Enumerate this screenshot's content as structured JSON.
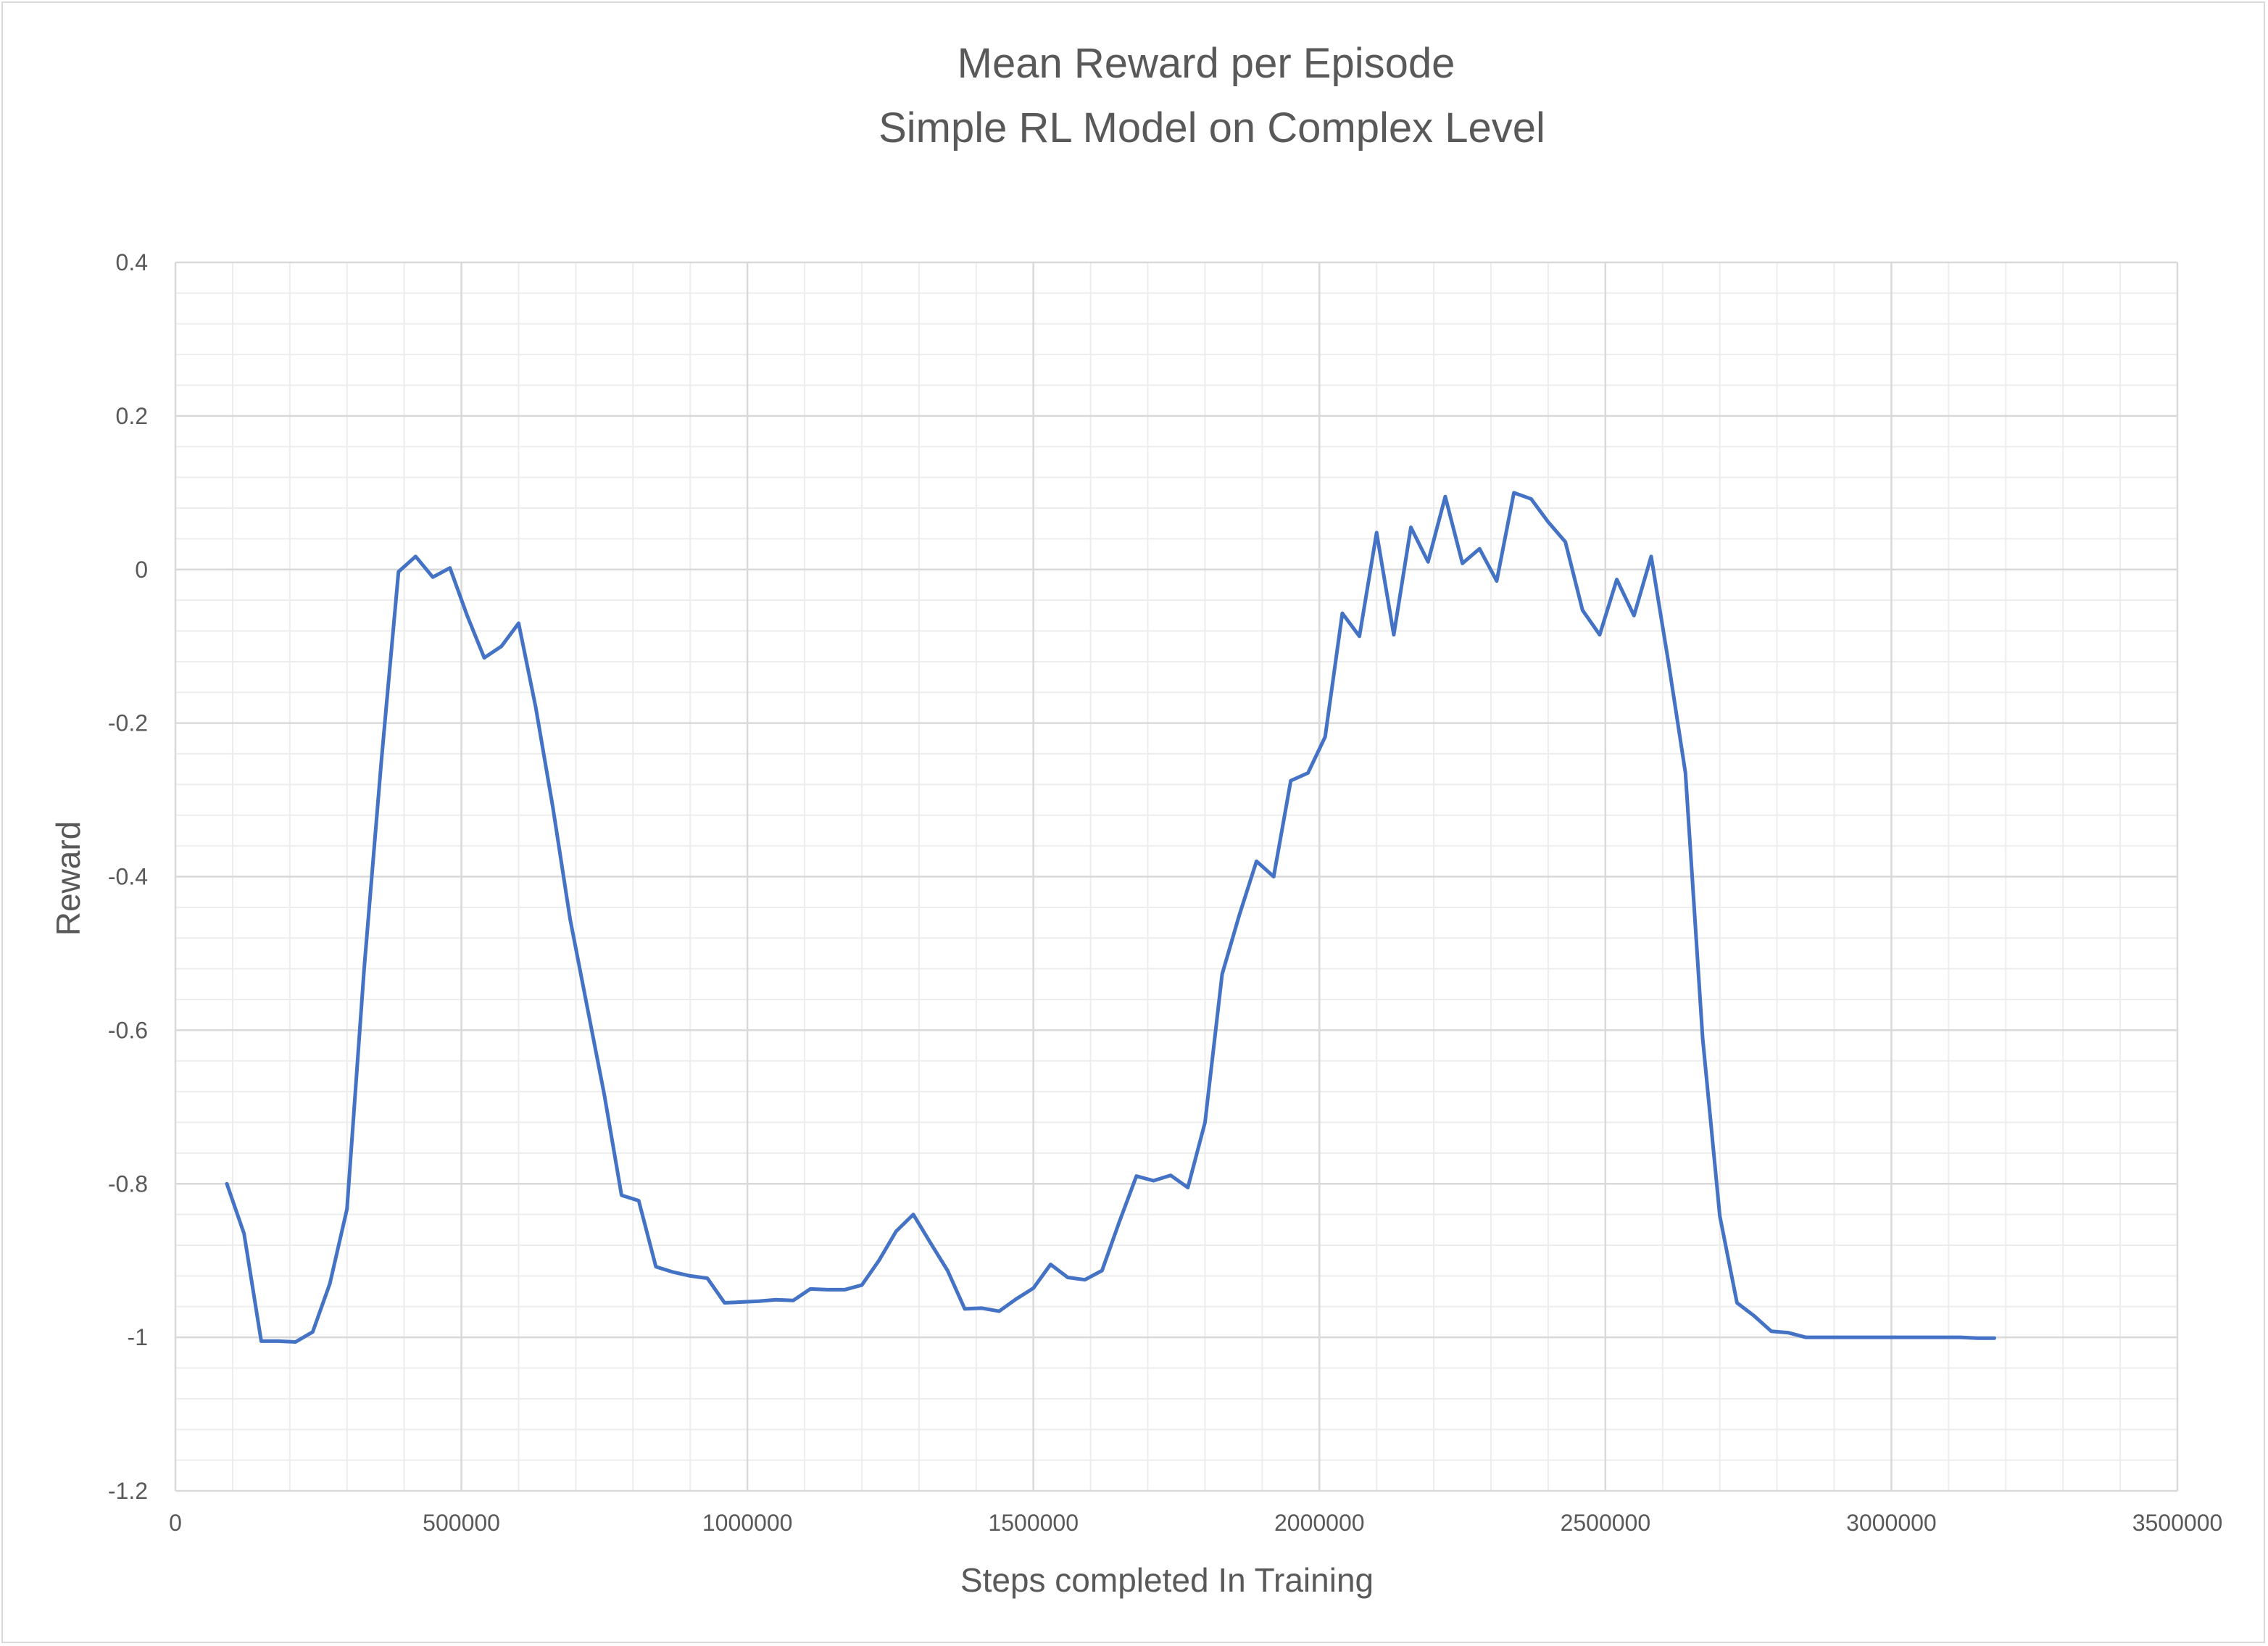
{
  "chart_data": {
    "type": "line",
    "title": "Mean Reward per Episode",
    "subtitle": "Simple RL Model on Complex Level",
    "xlabel": "Steps completed In Training",
    "ylabel": "Reward",
    "xlim": [
      0,
      3500000
    ],
    "ylim": [
      -1.2,
      0.4
    ],
    "x_ticks": [
      0,
      500000,
      1000000,
      1500000,
      2000000,
      2500000,
      3000000,
      3500000
    ],
    "x_tick_labels": [
      "0",
      "500000",
      "1000000",
      "1500000",
      "2000000",
      "2500000",
      "3000000",
      "3500000"
    ],
    "y_ticks": [
      -1.2,
      -1,
      -0.8,
      -0.6,
      -0.4,
      -0.2,
      0,
      0.2,
      0.4
    ],
    "y_tick_labels": [
      "-1.2",
      "-1",
      "-0.8",
      "-0.6",
      "-0.4",
      "-0.2",
      "0",
      "0.2",
      "0.4"
    ],
    "grid": true,
    "legend": "none",
    "line_color": "#4472c4",
    "series": [
      {
        "x": [
          90000,
          120000,
          150000,
          180000,
          210000,
          240000,
          270000,
          300000,
          330000,
          360000,
          390000,
          420000,
          450000,
          480000,
          510000,
          540000,
          570000,
          600000,
          630000,
          660000,
          690000,
          720000,
          750000,
          780000,
          810000,
          840000,
          870000,
          900000,
          930000,
          960000,
          990000,
          1020000,
          1050000,
          1080000,
          1110000,
          1140000,
          1170000,
          1200000,
          1230000,
          1260000,
          1290000,
          1320000,
          1350000,
          1380000,
          1410000,
          1440000,
          1470000,
          1500000,
          1530000,
          1560000,
          1590000,
          1620000,
          1650000,
          1680000,
          1710000,
          1740000,
          1770000,
          1800000,
          1830000,
          1860000,
          1890000,
          1920000,
          1950000,
          1980000,
          2010000,
          2040000,
          2070000,
          2100000,
          2130000,
          2160000,
          2190000,
          2220000,
          2250000,
          2280000,
          2310000,
          2340000,
          2370000,
          2400000,
          2430000,
          2460000,
          2490000,
          2520000,
          2550000,
          2580000,
          2610000,
          2640000,
          2670000,
          2700000,
          2730000,
          2760000,
          2790000,
          2820000,
          2850000,
          2880000,
          2910000,
          2940000,
          2970000,
          3000000,
          3030000,
          3060000,
          3090000,
          3120000,
          3150000,
          3180000
        ],
        "values": [
          -0.8,
          -0.865,
          -1.005,
          -1.005,
          -1.006,
          -0.993,
          -0.93,
          -0.833,
          -0.52,
          -0.25,
          -0.003,
          0.017,
          -0.01,
          0.002,
          -0.06,
          -0.115,
          -0.1,
          -0.07,
          -0.18,
          -0.31,
          -0.455,
          -0.57,
          -0.685,
          -0.815,
          -0.822,
          -0.908,
          -0.915,
          -0.92,
          -0.923,
          -0.955,
          -0.954,
          -0.953,
          -0.951,
          -0.952,
          -0.937,
          -0.938,
          -0.938,
          -0.932,
          -0.9,
          -0.862,
          -0.84,
          -0.877,
          -0.913,
          -0.963,
          -0.962,
          -0.966,
          -0.95,
          -0.936,
          -0.905,
          -0.922,
          -0.925,
          -0.913,
          -0.85,
          -0.79,
          -0.796,
          -0.789,
          -0.805,
          -0.72,
          -0.527,
          -0.45,
          -0.38,
          -0.4,
          -0.275,
          -0.265,
          -0.218,
          -0.057,
          -0.087,
          0.048,
          -0.085,
          0.055,
          0.01,
          0.095,
          0.008,
          0.027,
          -0.015,
          0.1,
          0.092,
          0.062,
          0.036,
          -0.053,
          -0.085,
          -0.013,
          -0.06,
          0.017,
          -0.12,
          -0.265,
          -0.61,
          -0.842,
          -0.955,
          -0.972,
          -0.992,
          -0.994,
          -1.0,
          -1.0,
          -1.0,
          -1.0,
          -1.0,
          -1.0,
          -1.0,
          -1.0,
          -1.0,
          -1.0,
          -1.001,
          -1.001
        ]
      }
    ]
  }
}
